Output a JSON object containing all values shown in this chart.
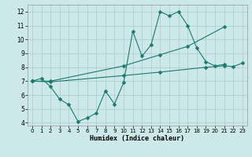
{
  "title": "",
  "xlabel": "Humidex (Indice chaleur)",
  "background_color": "#cce8e8",
  "grid_color": "#b0d0d0",
  "line_color": "#1a7a6e",
  "xlim": [
    -0.5,
    23.5
  ],
  "ylim": [
    3.8,
    12.5
  ],
  "yticks": [
    4,
    5,
    6,
    7,
    8,
    9,
    10,
    11,
    12
  ],
  "xticks": [
    0,
    1,
    2,
    3,
    4,
    5,
    6,
    7,
    8,
    9,
    10,
    11,
    12,
    13,
    14,
    15,
    16,
    17,
    18,
    19,
    20,
    21,
    22,
    23
  ],
  "line1_x": [
    0,
    1,
    2,
    3,
    4,
    5,
    6,
    7,
    8,
    9,
    10,
    11,
    12,
    13,
    14,
    15,
    16,
    17,
    18,
    19,
    20,
    21
  ],
  "line1_y": [
    7.0,
    7.2,
    6.6,
    5.7,
    5.3,
    4.1,
    4.35,
    4.7,
    6.3,
    5.35,
    6.9,
    10.6,
    8.8,
    9.6,
    12.0,
    11.7,
    12.0,
    11.0,
    9.4,
    8.4,
    8.1,
    8.2
  ],
  "line2_x": [
    0,
    2,
    10,
    14,
    17,
    21
  ],
  "line2_y": [
    7.0,
    7.0,
    8.1,
    8.9,
    9.5,
    10.9
  ],
  "line3_x": [
    0,
    2,
    10,
    14,
    19,
    21,
    22,
    23
  ],
  "line3_y": [
    7.0,
    6.95,
    7.4,
    7.65,
    8.0,
    8.1,
    8.05,
    8.3
  ],
  "markersize": 2.5
}
